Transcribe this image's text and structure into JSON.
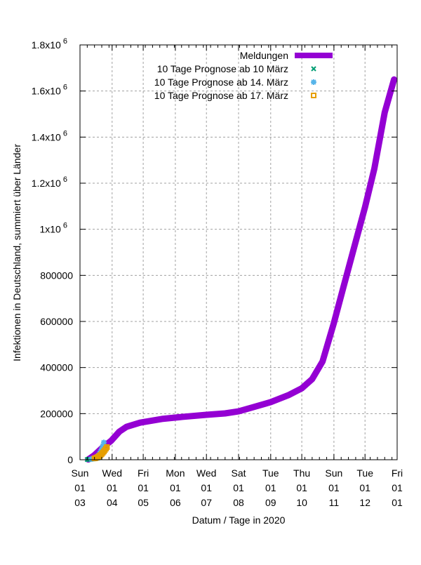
{
  "chart_data": {
    "type": "line",
    "xlabel": "Datum / Tage in 2020",
    "ylabel": "Infektionen in Deutschland, summiert über Länder",
    "xlim": [
      "2020-03-01",
      "2021-01-01"
    ],
    "ylim": [
      0,
      1800000
    ],
    "grid": true,
    "legend_position": "top-right",
    "yticks": [
      {
        "value": 0,
        "label": "0"
      },
      {
        "value": 200000,
        "label": "200000"
      },
      {
        "value": 400000,
        "label": "400000"
      },
      {
        "value": 600000,
        "label": "600000"
      },
      {
        "value": 800000,
        "label": "800000"
      },
      {
        "value": 1000000,
        "label": "1x10",
        "exp": "6"
      },
      {
        "value": 1200000,
        "label": "1.2x10",
        "exp": "6"
      },
      {
        "value": 1400000,
        "label": "1.4x10",
        "exp": "6"
      },
      {
        "value": 1600000,
        "label": "1.6x10",
        "exp": "6"
      },
      {
        "value": 1800000,
        "label": "1.8x10",
        "exp": "6"
      }
    ],
    "xticks": [
      {
        "date": "2020-03-01",
        "lines": [
          "Sun",
          "01",
          "03"
        ]
      },
      {
        "date": "2020-04-01",
        "lines": [
          "Wed",
          "01",
          "04"
        ]
      },
      {
        "date": "2020-05-01",
        "lines": [
          "Fri",
          "01",
          "05"
        ]
      },
      {
        "date": "2020-06-01",
        "lines": [
          "Mon",
          "01",
          "06"
        ]
      },
      {
        "date": "2020-07-01",
        "lines": [
          "Wed",
          "01",
          "07"
        ]
      },
      {
        "date": "2020-08-01",
        "lines": [
          "Sat",
          "01",
          "08"
        ]
      },
      {
        "date": "2020-09-01",
        "lines": [
          "Tue",
          "01",
          "09"
        ]
      },
      {
        "date": "2020-10-01",
        "lines": [
          "Thu",
          "01",
          "10"
        ]
      },
      {
        "date": "2020-11-01",
        "lines": [
          "Sun",
          "01",
          "11"
        ]
      },
      {
        "date": "2020-12-01",
        "lines": [
          "Tue",
          "01",
          "12"
        ]
      },
      {
        "date": "2021-01-01",
        "lines": [
          "Fri",
          "01",
          "01"
        ]
      }
    ],
    "series": [
      {
        "name": "Meldungen",
        "style": "line",
        "color": "#9400d3",
        "x": [
          "2020-03-09",
          "2020-03-15",
          "2020-03-22",
          "2020-03-31",
          "2020-04-08",
          "2020-04-15",
          "2020-04-28",
          "2020-05-19",
          "2020-06-08",
          "2020-07-01",
          "2020-07-19",
          "2020-08-01",
          "2020-08-15",
          "2020-09-01",
          "2020-09-18",
          "2020-10-01",
          "2020-10-11",
          "2020-10-21",
          "2020-11-01",
          "2020-11-10",
          "2020-11-20",
          "2020-12-01",
          "2020-12-10",
          "2020-12-20",
          "2020-12-29"
        ],
        "y": [
          1000,
          20000,
          50000,
          82000,
          122000,
          143000,
          161000,
          177000,
          186000,
          195000,
          201000,
          210000,
          228000,
          250000,
          280000,
          310000,
          350000,
          426000,
          594000,
          746000,
          913000,
          1096000,
          1263000,
          1507000,
          1650000
        ]
      },
      {
        "name": "10 Tage Prognose ab 10 März",
        "style": "points",
        "marker": "x",
        "color": "#009e73",
        "x": [
          "2020-03-08",
          "2020-03-09",
          "2020-03-10",
          "2020-03-11",
          "2020-03-12",
          "2020-03-13",
          "2020-03-14",
          "2020-03-15",
          "2020-03-16",
          "2020-03-17",
          "2020-03-18",
          "2020-03-19",
          "2020-03-20"
        ],
        "y": [
          800,
          1100,
          1500,
          1900,
          2400,
          3000,
          3800,
          4600,
          5500,
          6500,
          7600,
          8800,
          10000
        ]
      },
      {
        "name": "10 Tage Prognose ab 14. März",
        "style": "points",
        "marker": "star",
        "color": "#56b4e9",
        "x": [
          "2020-03-12",
          "2020-03-13",
          "2020-03-14",
          "2020-03-15",
          "2020-03-16",
          "2020-03-17",
          "2020-03-18",
          "2020-03-19",
          "2020-03-20",
          "2020-03-21",
          "2020-03-22",
          "2020-03-23",
          "2020-03-24"
        ],
        "y": [
          2700,
          3700,
          4600,
          6000,
          8000,
          11000,
          15000,
          20000,
          27000,
          36000,
          47000,
          60000,
          75000
        ]
      },
      {
        "name": "10 Tage Prognose ab 17. März",
        "style": "points",
        "marker": "square",
        "color": "#e69f00",
        "x": [
          "2020-03-15",
          "2020-03-16",
          "2020-03-17",
          "2020-03-18",
          "2020-03-19",
          "2020-03-20",
          "2020-03-21",
          "2020-03-22",
          "2020-03-23",
          "2020-03-24",
          "2020-03-25",
          "2020-03-26",
          "2020-03-27"
        ],
        "y": [
          5800,
          7200,
          9300,
          11500,
          14000,
          17500,
          21000,
          25500,
          30500,
          36000,
          42000,
          48500,
          55000
        ]
      }
    ]
  }
}
